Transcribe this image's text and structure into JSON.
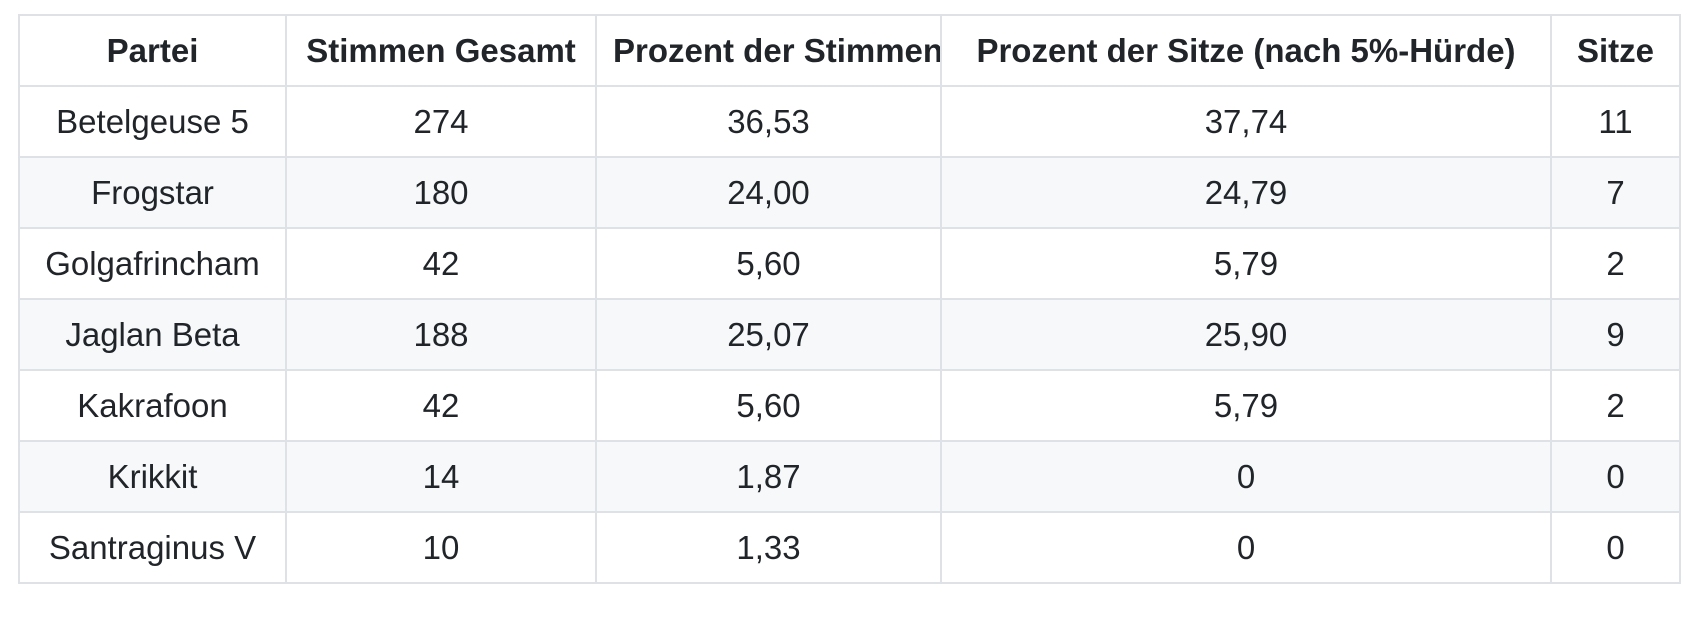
{
  "chart_data": {
    "type": "table",
    "title": "",
    "columns": [
      "Partei",
      "Stimmen Gesamt",
      "Prozent der Stimmen",
      "Prozent der Sitze (nach 5%-Hürde)",
      "Sitze"
    ],
    "column_keys": [
      "partei",
      "stimmen-gesamt",
      "prozent-der-stimmen",
      "prozent-der-sitze",
      "sitze"
    ],
    "rows": [
      [
        "Betelgeuse 5",
        "274",
        "36,53",
        "37,74",
        "11"
      ],
      [
        "Frogstar",
        "180",
        "24,00",
        "24,79",
        "7"
      ],
      [
        "Golgafrincham",
        "42",
        "5,60",
        "5,79",
        "2"
      ],
      [
        "Jaglan Beta",
        "188",
        "25,07",
        "25,90",
        "9"
      ],
      [
        "Kakrafoon",
        "42",
        "5,60",
        "5,79",
        "2"
      ],
      [
        "Krikkit",
        "14",
        "1,87",
        "0",
        "0"
      ],
      [
        "Santraginus V",
        "10",
        "1,33",
        "0",
        "0"
      ]
    ]
  },
  "colors": {
    "border": "#dee2e6",
    "stripe": "#f6f8fa",
    "text": "#212529",
    "background": "#ffffff"
  }
}
